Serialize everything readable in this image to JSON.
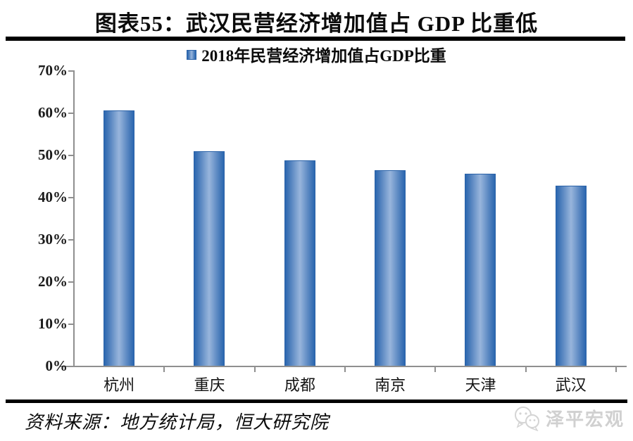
{
  "page": {
    "title": "图表55：武汉民营经济增加值占 GDP 比重低",
    "source": "资料来源：地方统计局，恒大研究院",
    "watermark": "泽平宏观"
  },
  "chart_data": {
    "type": "bar",
    "title": "图表55：武汉民营经济增加值占 GDP 比重低",
    "legend": [
      "2018年民营经济增加值占GDP比重"
    ],
    "legend_position": "top-center",
    "categories": [
      "杭州",
      "重庆",
      "成都",
      "南京",
      "天津",
      "武汉"
    ],
    "series": [
      {
        "name": "2018年民营经济增加值占GDP比重",
        "values": [
          60.5,
          50.8,
          48.6,
          46.4,
          45.5,
          42.7
        ]
      }
    ],
    "unit": "%",
    "xlabel": "",
    "ylabel": "",
    "ylim": [
      0,
      70
    ],
    "ytick_step": 10,
    "ytick_labels": [
      "0%",
      "10%",
      "20%",
      "30%",
      "40%",
      "50%",
      "60%",
      "70%"
    ],
    "grid": false,
    "colors": {
      "bar_edge": "#2b67b0",
      "bar_center": "#98b5dc",
      "axis": "#8f8f8f",
      "text": "#0b0b0b",
      "watermark": "#d0d0d0"
    }
  }
}
